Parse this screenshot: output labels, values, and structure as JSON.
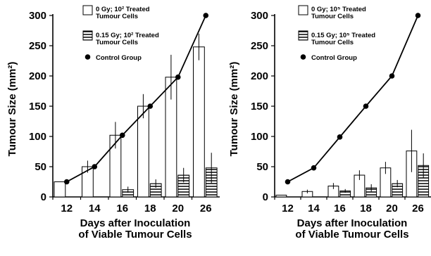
{
  "chart_data": [
    {
      "type": "bar",
      "categories": [
        "12",
        "14",
        "16",
        "18",
        "20",
        "26"
      ],
      "ylabel": "Tumour Size (mm²)",
      "xlabel_lines": [
        "Days after Inoculation",
        "of Viable Tumour Cells"
      ],
      "ylim": [
        0,
        300
      ],
      "yticks": [
        "0",
        "50",
        "100",
        "150",
        "200",
        "250",
        "300"
      ],
      "legend": {
        "open": [
          "0 Gy; 10² Treated",
          "Tumour Cells"
        ],
        "hatched": [
          "0.15 Gy; 10² Treated",
          "Tumour Cells"
        ],
        "control": [
          "Control Group"
        ]
      },
      "series": [
        {
          "name": "0 Gy; 10² Treated Tumour Cells",
          "style": "open",
          "values": [
            25,
            50,
            102,
            150,
            198,
            248
          ],
          "errors": [
            0,
            10,
            22,
            20,
            37,
            22
          ]
        },
        {
          "name": "0.15 Gy; 10² Treated Tumour Cells",
          "style": "hatched",
          "values": [
            0,
            0,
            12,
            22,
            36,
            48
          ],
          "errors": [
            0,
            0,
            5,
            7,
            12,
            25
          ]
        },
        {
          "name": "Control Group",
          "style": "line",
          "values": [
            25,
            50,
            102,
            150,
            198,
            300
          ]
        }
      ]
    },
    {
      "type": "bar",
      "categories": [
        "12",
        "14",
        "16",
        "18",
        "20",
        "26"
      ],
      "ylabel": "Tumour Size (mm²)",
      "xlabel_lines": [
        "Days after Inoculation",
        "of Viable Tumour Cells"
      ],
      "ylim": [
        0,
        300
      ],
      "yticks": [
        "0",
        "50",
        "100",
        "150",
        "200",
        "250",
        "300"
      ],
      "legend": {
        "open": [
          "0 Gy; 10⁵ Treated",
          "Tumour Cells"
        ],
        "hatched": [
          "0.15 Gy; 10⁵ Treated",
          "Tumour Cells"
        ],
        "control": [
          "Control Group"
        ]
      },
      "series": [
        {
          "name": "0 Gy; 10⁵ Treated Tumour Cells",
          "style": "open",
          "values": [
            3,
            9,
            18,
            36,
            48,
            76
          ],
          "errors": [
            0,
            3,
            5,
            8,
            10,
            35
          ]
        },
        {
          "name": "0.15 Gy; 10⁵ Treated Tumour Cells",
          "style": "hatched",
          "values": [
            0,
            0,
            10,
            15,
            22,
            52
          ],
          "errors": [
            0,
            0,
            3,
            6,
            6,
            20
          ]
        },
        {
          "name": "Control Group",
          "style": "line",
          "values": [
            25,
            48,
            99,
            150,
            200,
            300
          ]
        }
      ]
    }
  ]
}
